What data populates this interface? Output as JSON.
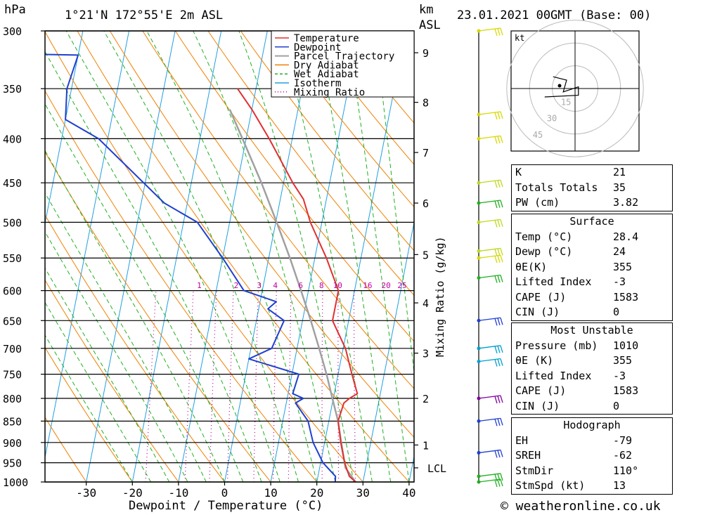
{
  "header": {
    "pressure_unit": "hPa",
    "location": "1°21'N  172°55'E  2m  ASL",
    "km_label": "km",
    "asl_label": "ASL",
    "datetime": "23.01.2021  00GMT  (Base: 00)"
  },
  "chart_data": {
    "type": "line",
    "chart_kind": "skew-T log-P sounding",
    "xlabel": "Dewpoint / Temperature (°C)",
    "ylabel": "hPa",
    "right_axis_label": "Mixing Ratio (g/kg)",
    "xlim": [
      -40,
      40
    ],
    "ylim": [
      1000,
      300
    ],
    "y_scale": "log",
    "x_ticks": [
      -30,
      -20,
      -10,
      0,
      10,
      20,
      30,
      40
    ],
    "pressure_ticks": [
      300,
      350,
      400,
      450,
      500,
      550,
      600,
      650,
      700,
      750,
      800,
      850,
      900,
      950,
      1000
    ],
    "km_ticks": [
      {
        "label": "1",
        "p": 906
      },
      {
        "label": "2",
        "p": 800
      },
      {
        "label": "3",
        "p": 709
      },
      {
        "label": "4",
        "p": 620
      },
      {
        "label": "5",
        "p": 545
      },
      {
        "label": "6",
        "p": 475
      },
      {
        "label": "7",
        "p": 415
      },
      {
        "label": "8",
        "p": 363
      },
      {
        "label": "9",
        "p": 318
      }
    ],
    "lcl": {
      "label": "LCL",
      "p": 963
    },
    "mixing_ratio_labels": [
      "1",
      "2",
      "3",
      "4",
      "6",
      "8",
      "10",
      "16",
      "20",
      "25"
    ],
    "mixing_ratio_label_x": [
      -5.5,
      2.5,
      7.5,
      11,
      16.5,
      21,
      24.5,
      31,
      35,
      38.5
    ],
    "legend": [
      {
        "name": "Temperature",
        "color": "#e03030",
        "style": "solid"
      },
      {
        "name": "Dewpoint",
        "color": "#2040d0",
        "style": "solid"
      },
      {
        "name": "Parcel Trajectory",
        "color": "#a0a0a0",
        "style": "solid"
      },
      {
        "name": "Dry Adiabat",
        "color": "#f08000",
        "style": "solid"
      },
      {
        "name": "Wet Adiabat",
        "color": "#20b020",
        "style": "dashed"
      },
      {
        "name": "Isotherm",
        "color": "#20a0e0",
        "style": "solid"
      },
      {
        "name": "Mixing Ratio",
        "color": "#c000a0",
        "style": "dotted"
      }
    ],
    "series": [
      {
        "name": "Temperature",
        "color": "#e03030",
        "points": [
          [
            1000,
            28.4
          ],
          [
            985,
            26.8
          ],
          [
            950,
            25.2
          ],
          [
            900,
            23.5
          ],
          [
            850,
            22.0
          ],
          [
            810,
            22.5
          ],
          [
            800,
            23.5
          ],
          [
            790,
            25.0
          ],
          [
            750,
            23.0
          ],
          [
            700,
            20.5
          ],
          [
            650,
            16.5
          ],
          [
            615,
            16.5
          ],
          [
            600,
            16.5
          ],
          [
            550,
            12.5
          ],
          [
            500,
            7.5
          ],
          [
            470,
            5.0
          ],
          [
            450,
            2.0
          ],
          [
            400,
            -5.0
          ],
          [
            370,
            -10.0
          ],
          [
            350,
            -14.0
          ]
        ]
      },
      {
        "name": "Dewpoint",
        "color": "#2040d0",
        "points": [
          [
            1000,
            24.0
          ],
          [
            985,
            23.8
          ],
          [
            950,
            20.5
          ],
          [
            900,
            17.5
          ],
          [
            850,
            15.5
          ],
          [
            810,
            12.0
          ],
          [
            800,
            13.5
          ],
          [
            790,
            11.0
          ],
          [
            750,
            11.5
          ],
          [
            720,
            0.0
          ],
          [
            700,
            4.5
          ],
          [
            650,
            6.0
          ],
          [
            630,
            2.0
          ],
          [
            618,
            3.5
          ],
          [
            600,
            -4.0
          ],
          [
            550,
            -10.0
          ],
          [
            500,
            -17.0
          ],
          [
            475,
            -25.0
          ],
          [
            400,
            -42.0
          ],
          [
            380,
            -50.0
          ],
          [
            350,
            -51.0
          ],
          [
            320,
            -50.0
          ],
          [
            318,
            -76.0
          ],
          [
            300,
            -82.0
          ]
        ]
      },
      {
        "name": "Parcel Trajectory",
        "color": "#a0a0a0",
        "points": [
          [
            1000,
            28.4
          ],
          [
            963,
            25.6
          ],
          [
            900,
            23.6
          ],
          [
            850,
            22.0
          ],
          [
            800,
            19.8
          ],
          [
            750,
            17.5
          ],
          [
            700,
            14.8
          ],
          [
            650,
            11.8
          ],
          [
            600,
            8.4
          ],
          [
            550,
            4.6
          ],
          [
            500,
            0.2
          ],
          [
            450,
            -4.8
          ],
          [
            400,
            -10.8
          ],
          [
            370,
            -14.8
          ]
        ]
      }
    ],
    "hodograph": {
      "unit_label": "kt",
      "ring_labels": [
        "15",
        "30",
        "45"
      ],
      "points": [
        [
          -13,
          7
        ],
        [
          -5,
          5
        ],
        [
          -7,
          -2
        ],
        [
          2,
          1
        ],
        [
          2,
          -4
        ],
        [
          -18,
          -5
        ]
      ]
    },
    "wind_barbs": [
      {
        "p": 300,
        "color": "#d8d800"
      },
      {
        "p": 375,
        "color": "#d8d800"
      },
      {
        "p": 400,
        "color": "#d8d800"
      },
      {
        "p": 450,
        "color": "#c0d820"
      },
      {
        "p": 475,
        "color": "#20b020"
      },
      {
        "p": 500,
        "color": "#c0d820"
      },
      {
        "p": 540,
        "color": "#c0d820"
      },
      {
        "p": 550,
        "color": "#d8d800"
      },
      {
        "p": 580,
        "color": "#20b020"
      },
      {
        "p": 650,
        "color": "#2040d0"
      },
      {
        "p": 700,
        "color": "#00a0d0"
      },
      {
        "p": 725,
        "color": "#00a0d0"
      },
      {
        "p": 800,
        "color": "#8000a0"
      },
      {
        "p": 850,
        "color": "#2040d0"
      },
      {
        "p": 925,
        "color": "#2040d0"
      },
      {
        "p": 985,
        "color": "#20b020"
      },
      {
        "p": 1000,
        "color": "#20b020"
      }
    ]
  },
  "indices": {
    "rows": [
      {
        "k": "K",
        "v": "21"
      },
      {
        "k": "Totals Totals",
        "v": "35"
      },
      {
        "k": "PW (cm)",
        "v": "3.82"
      }
    ]
  },
  "surface": {
    "title": "Surface",
    "rows": [
      {
        "k": "Temp (°C)",
        "v": "28.4"
      },
      {
        "k": "Dewp (°C)",
        "v": "24"
      },
      {
        "k": "θE(K)",
        "v": "355"
      },
      {
        "k": "Lifted Index",
        "v": "-3"
      },
      {
        "k": "CAPE (J)",
        "v": "1583"
      },
      {
        "k": "CIN (J)",
        "v": "0"
      }
    ]
  },
  "most_unstable": {
    "title": "Most Unstable",
    "rows": [
      {
        "k": "Pressure (mb)",
        "v": "1010"
      },
      {
        "k": "θE (K)",
        "v": "355"
      },
      {
        "k": "Lifted Index",
        "v": "-3"
      },
      {
        "k": "CAPE (J)",
        "v": "1583"
      },
      {
        "k": "CIN (J)",
        "v": "0"
      }
    ]
  },
  "hodograph_table": {
    "title": "Hodograph",
    "rows": [
      {
        "k": "EH",
        "v": "-79"
      },
      {
        "k": "SREH",
        "v": "-62"
      },
      {
        "k": "StmDir",
        "v": "110°"
      },
      {
        "k": "StmSpd (kt)",
        "v": "13"
      }
    ]
  },
  "credit": "© weatheronline.co.uk"
}
